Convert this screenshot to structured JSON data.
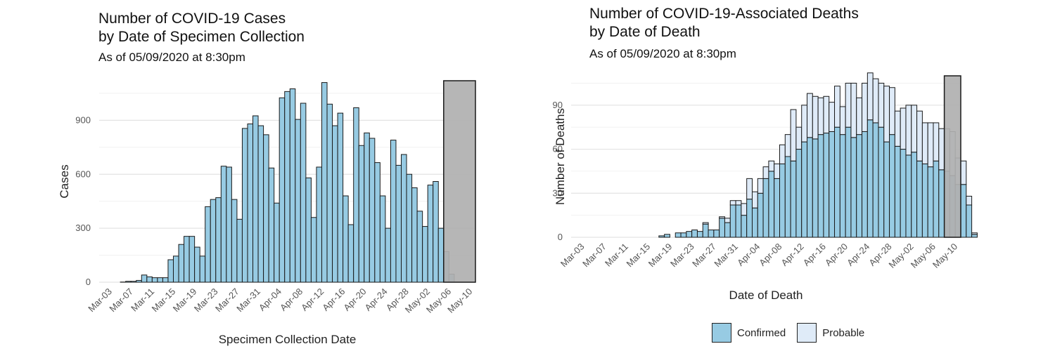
{
  "chart_data": [
    {
      "type": "bar",
      "title_line1": "Number of COVID-19 Cases",
      "title_line2": "by Date of Specimen Collection",
      "subtitle": "As of 05/09/2020 at 8:30pm",
      "xlabel": "Specimen Collection Date",
      "ylabel": "Cases",
      "x_start": "2020-03-01",
      "x_end": "2020-05-11",
      "ylim": [
        0,
        1120
      ],
      "y_ticks": [
        0,
        300,
        600,
        900
      ],
      "x_tick_labels": [
        "Mar-03",
        "Mar-07",
        "Mar-11",
        "Mar-15",
        "Mar-19",
        "Mar-23",
        "Mar-27",
        "Mar-31",
        "Apr-04",
        "Apr-08",
        "Apr-12",
        "Apr-16",
        "Apr-20",
        "Apr-24",
        "Apr-28",
        "May-02",
        "May-06",
        "May-10"
      ],
      "grid": true,
      "shaded_region": {
        "from": "2020-05-05",
        "to": "2020-05-10",
        "color": "#b0b0b0"
      },
      "series": [
        {
          "name": "Cases",
          "color": "#97cbe3",
          "start_date": "2020-03-05",
          "values": [
            1,
            5,
            5,
            10,
            40,
            30,
            25,
            25,
            25,
            125,
            145,
            210,
            255,
            255,
            195,
            145,
            420,
            460,
            470,
            645,
            640,
            460,
            350,
            855,
            880,
            925,
            870,
            820,
            635,
            440,
            1025,
            1060,
            1075,
            905,
            995,
            580,
            360,
            640,
            1110,
            990,
            870,
            940,
            480,
            320,
            970,
            760,
            830,
            800,
            665,
            480,
            300,
            790,
            650,
            710,
            600,
            525,
            395,
            310,
            540,
            560,
            300,
            170,
            45
          ]
        }
      ]
    },
    {
      "type": "bar",
      "stacked": true,
      "title_line1": "Number of COVID-19-Associated Deaths",
      "title_line2": "by Date of Death",
      "subtitle": "As of 05/09/2020 at 8:30pm",
      "xlabel": "Date of Death",
      "ylabel": "Number of Deaths",
      "x_start": "2020-03-01",
      "x_end": "2020-05-11",
      "ylim": [
        0,
        110
      ],
      "y_ticks": [
        0,
        30,
        60,
        90
      ],
      "x_tick_labels": [
        "Mar-03",
        "Mar-07",
        "Mar-11",
        "Mar-15",
        "Mar-19",
        "Mar-23",
        "Mar-27",
        "Mar-31",
        "Apr-04",
        "Apr-08",
        "Apr-12",
        "Apr-16",
        "Apr-20",
        "Apr-24",
        "Apr-28",
        "May-02",
        "May-06",
        "May-10"
      ],
      "grid": true,
      "shaded_region": {
        "from": "2020-05-08",
        "to": "2020-05-10",
        "color": "#b0b0b0"
      },
      "series": [
        {
          "name": "Confirmed",
          "color": "#97cbe3",
          "start_date": "2020-03-17",
          "values": [
            1,
            2,
            0,
            3,
            3,
            4,
            5,
            4,
            9,
            5,
            5,
            13,
            10,
            22,
            22,
            15,
            26,
            20,
            30,
            40,
            45,
            40,
            50,
            55,
            52,
            60,
            65,
            68,
            67,
            70,
            71,
            72,
            75,
            70,
            75,
            68,
            70,
            72,
            80,
            78,
            75,
            65,
            70,
            62,
            60,
            56,
            58,
            52,
            50,
            48,
            52,
            46,
            45,
            42,
            36,
            36,
            22,
            2
          ]
        },
        {
          "name": "Probable",
          "color": "#dfebf8",
          "start_date": "2020-03-17",
          "values": [
            0,
            0,
            0,
            0,
            0,
            0,
            0,
            0,
            1,
            0,
            0,
            1,
            3,
            3,
            3,
            8,
            14,
            11,
            10,
            8,
            7,
            10,
            13,
            15,
            35,
            15,
            25,
            30,
            29,
            25,
            25,
            20,
            28,
            19,
            30,
            37,
            25,
            33,
            32,
            30,
            30,
            38,
            32,
            24,
            28,
            34,
            32,
            34,
            28,
            30,
            26,
            28,
            29,
            30,
            18,
            16,
            6,
            1
          ]
        }
      ],
      "legend": {
        "position": "bottom",
        "items": [
          "Confirmed",
          "Probable"
        ]
      }
    }
  ]
}
